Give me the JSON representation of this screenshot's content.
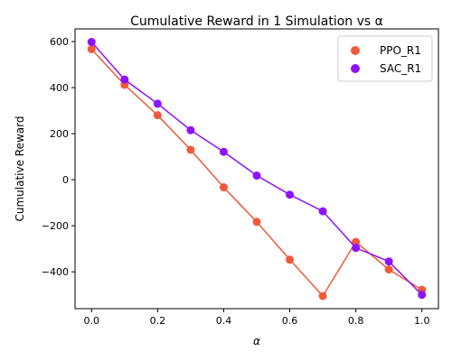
{
  "chart_data": {
    "type": "line",
    "title": "Cumulative Reward in 1 Simulation vs α",
    "xlabel": "α",
    "ylabel": "Cumulative Reward",
    "x": [
      0.0,
      0.1,
      0.2,
      0.3,
      0.4,
      0.5,
      0.6,
      0.7,
      0.8,
      0.9,
      1.0
    ],
    "xlim": [
      -0.05,
      1.05
    ],
    "ylim": [
      -560,
      655
    ],
    "x_ticks": [
      0.0,
      0.2,
      0.4,
      0.6,
      0.8,
      1.0
    ],
    "x_tick_labels": [
      "0.0",
      "0.2",
      "0.4",
      "0.6",
      "0.8",
      "1.0"
    ],
    "y_ticks": [
      -400,
      -200,
      0,
      200,
      400,
      600
    ],
    "y_tick_labels": [
      "−400",
      "−200",
      "0",
      "200",
      "400",
      "600"
    ],
    "grid": false,
    "legend_position": "top-right",
    "series": [
      {
        "name": "PPO_R1",
        "color": "#f05a3a",
        "values": [
          567,
          412,
          280,
          130,
          -33,
          -183,
          -347,
          -505,
          -270,
          -390,
          -478
        ]
      },
      {
        "name": "SAC_R1",
        "color": "#8f12fd",
        "values": [
          598,
          435,
          330,
          215,
          121,
          18,
          -65,
          -137,
          -296,
          -355,
          -500
        ]
      }
    ]
  }
}
